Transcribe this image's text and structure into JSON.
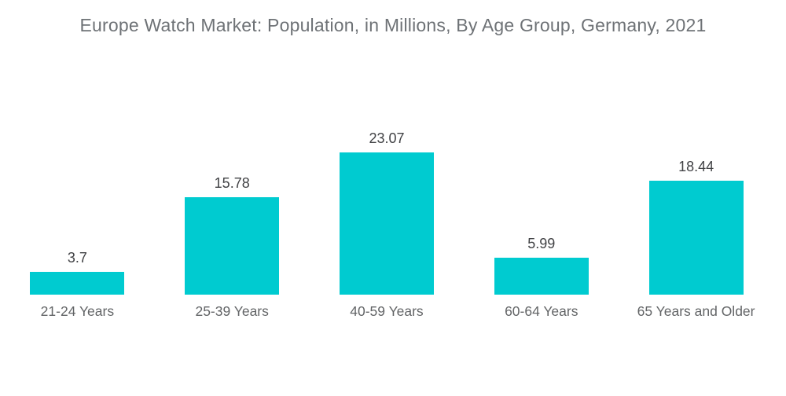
{
  "chart_data": {
    "type": "bar",
    "title": "Europe Watch Market: Population, in Millions, By Age Group, Germany, 2021",
    "categories": [
      "21-24 Years",
      "25-39 Years",
      "40-59 Years",
      "60-64 Years",
      "65 Years and Older"
    ],
    "values": [
      3.7,
      15.78,
      23.07,
      5.99,
      18.44
    ],
    "value_labels": [
      "3.7",
      "15.78",
      "23.07",
      "5.99",
      "18.44"
    ],
    "xlabel": "",
    "ylabel": "",
    "ylim": [
      0,
      23.07
    ],
    "grid": false,
    "legend": false,
    "bar_color": "#00CBD0"
  },
  "colors": {
    "background": "#ffffff",
    "bar": "#00CBD0",
    "title_text": "#6e7276",
    "value_text": "#414245",
    "category_text": "#626466"
  }
}
